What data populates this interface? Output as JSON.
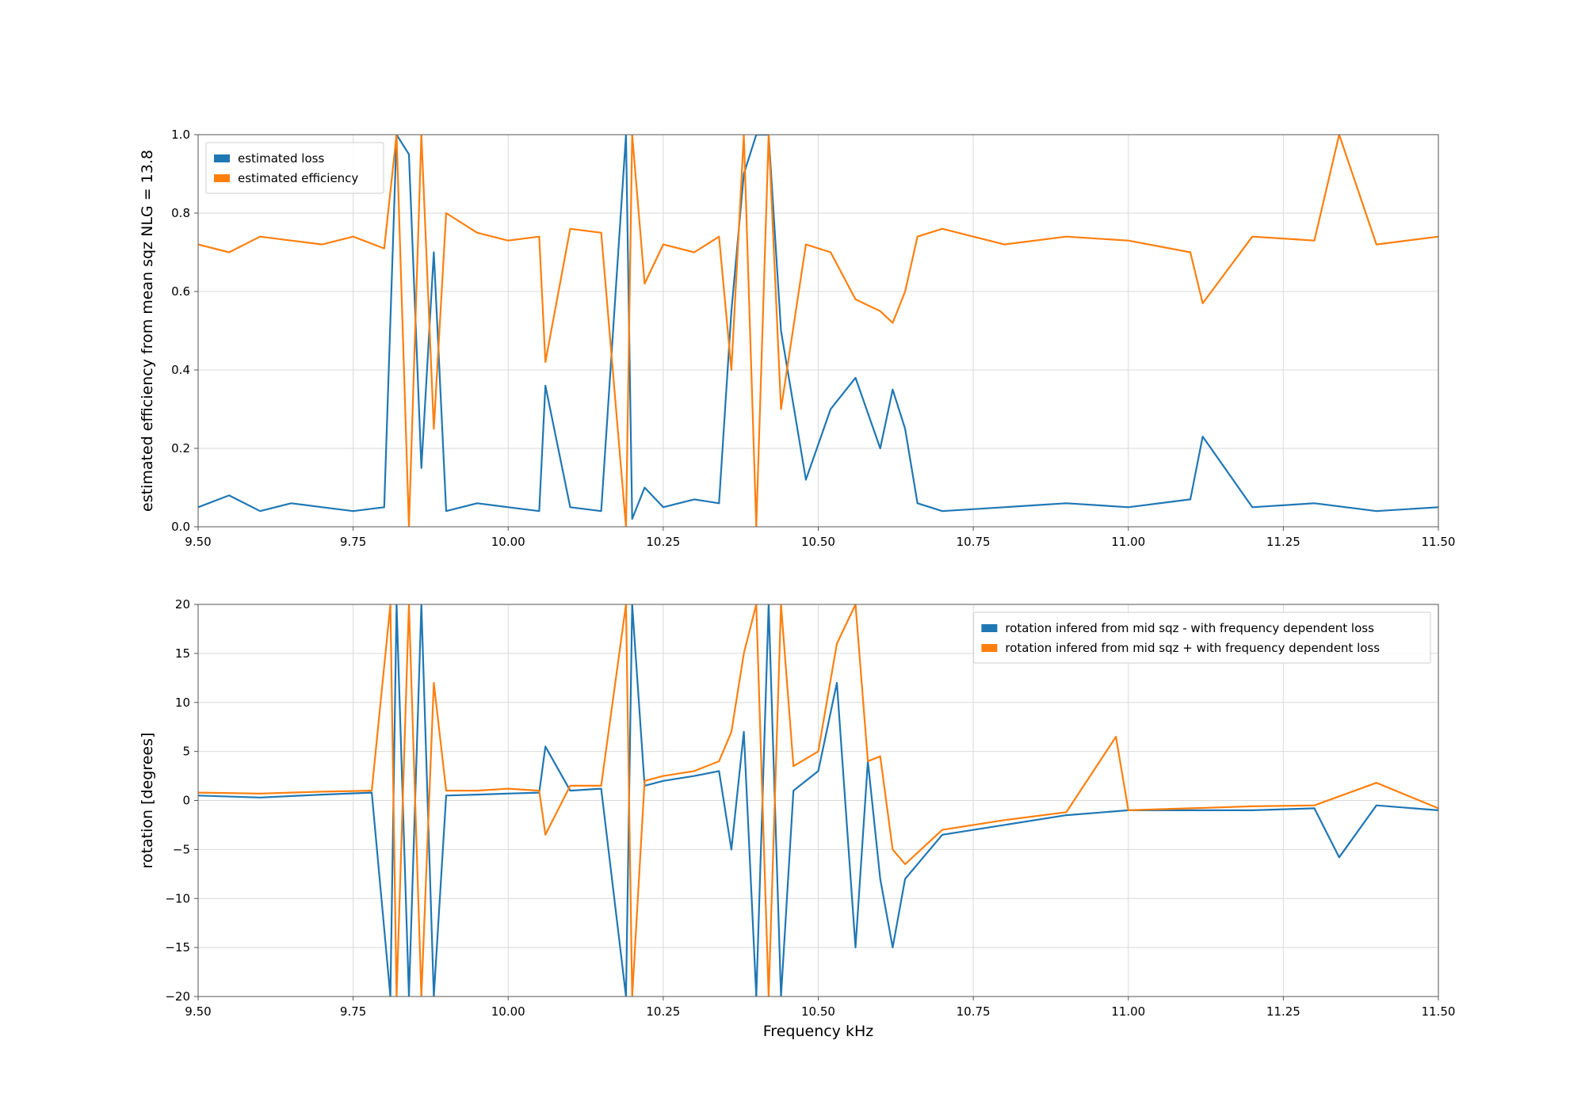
{
  "chart_data": [
    {
      "type": "line",
      "title": "",
      "xlabel": "",
      "ylabel": "estimated efficiency from mean sqz NLG = 13.8",
      "xlim": [
        9.5,
        11.5
      ],
      "ylim": [
        0.0,
        1.0
      ],
      "grid": true,
      "legend_placement": "upper-left",
      "xtick_labels": [
        "9.50",
        "9.75",
        "10.00",
        "10.25",
        "10.50",
        "10.75",
        "11.00",
        "11.25",
        "11.50"
      ],
      "ytick_labels": [
        "0.0",
        "0.2",
        "0.4",
        "0.6",
        "0.8",
        "1.0"
      ],
      "series": [
        {
          "name": "estimated loss",
          "color": "#1f77b4",
          "x": [
            9.5,
            9.55,
            9.6,
            9.65,
            9.7,
            9.75,
            9.8,
            9.82,
            9.84,
            9.86,
            9.88,
            9.9,
            9.95,
            10.0,
            10.05,
            10.06,
            10.1,
            10.15,
            10.19,
            10.2,
            10.22,
            10.25,
            10.3,
            10.34,
            10.36,
            10.38,
            10.4,
            10.42,
            10.44,
            10.48,
            10.52,
            10.56,
            10.6,
            10.62,
            10.64,
            10.66,
            10.7,
            10.8,
            10.9,
            11.0,
            11.1,
            11.12,
            11.2,
            11.3,
            11.4,
            11.5
          ],
          "y": [
            0.05,
            0.08,
            0.04,
            0.06,
            0.05,
            0.04,
            0.05,
            1.0,
            0.95,
            0.15,
            0.7,
            0.04,
            0.06,
            0.05,
            0.04,
            0.36,
            0.05,
            0.04,
            1.0,
            0.02,
            0.1,
            0.05,
            0.07,
            0.06,
            0.55,
            0.9,
            1.0,
            1.0,
            0.5,
            0.12,
            0.3,
            0.38,
            0.2,
            0.35,
            0.25,
            0.06,
            0.04,
            0.05,
            0.06,
            0.05,
            0.07,
            0.23,
            0.05,
            0.06,
            0.04,
            0.05
          ]
        },
        {
          "name": "estimated efficiency",
          "color": "#ff7f0e",
          "x": [
            9.5,
            9.55,
            9.6,
            9.65,
            9.7,
            9.75,
            9.8,
            9.82,
            9.84,
            9.86,
            9.88,
            9.9,
            9.95,
            10.0,
            10.05,
            10.06,
            10.1,
            10.15,
            10.19,
            10.2,
            10.22,
            10.25,
            10.3,
            10.34,
            10.36,
            10.38,
            10.4,
            10.42,
            10.44,
            10.48,
            10.52,
            10.56,
            10.6,
            10.62,
            10.64,
            10.66,
            10.7,
            10.8,
            10.9,
            11.0,
            11.1,
            11.12,
            11.2,
            11.3,
            11.34,
            11.4,
            11.5
          ],
          "y": [
            0.72,
            0.7,
            0.74,
            0.73,
            0.72,
            0.74,
            0.71,
            1.0,
            0.0,
            1.0,
            0.25,
            0.8,
            0.75,
            0.73,
            0.74,
            0.42,
            0.76,
            0.75,
            0.0,
            1.0,
            0.62,
            0.72,
            0.7,
            0.74,
            0.4,
            1.0,
            0.0,
            1.0,
            0.3,
            0.72,
            0.7,
            0.58,
            0.55,
            0.52,
            0.6,
            0.74,
            0.76,
            0.72,
            0.74,
            0.73,
            0.7,
            0.57,
            0.74,
            0.73,
            1.0,
            0.72,
            0.74
          ]
        }
      ]
    },
    {
      "type": "line",
      "title": "",
      "xlabel": "Frequency kHz",
      "ylabel": "rotation [degrees]",
      "xlim": [
        9.5,
        11.5
      ],
      "ylim": [
        -20,
        20
      ],
      "grid": true,
      "legend_placement": "upper-right",
      "xtick_labels": [
        "9.50",
        "9.75",
        "10.00",
        "10.25",
        "10.50",
        "10.75",
        "11.00",
        "11.25",
        "11.50"
      ],
      "ytick_labels": [
        "−20",
        "−15",
        "−10",
        "−5",
        "0",
        "5",
        "10",
        "15",
        "20"
      ],
      "series": [
        {
          "name": "rotation infered from mid sqz - with frequency dependent loss",
          "color": "#1f77b4",
          "x": [
            9.5,
            9.6,
            9.7,
            9.78,
            9.81,
            9.82,
            9.84,
            9.86,
            9.88,
            9.9,
            9.95,
            10.0,
            10.05,
            10.06,
            10.1,
            10.15,
            10.19,
            10.2,
            10.22,
            10.25,
            10.3,
            10.34,
            10.36,
            10.38,
            10.4,
            10.42,
            10.44,
            10.46,
            10.5,
            10.53,
            10.56,
            10.58,
            10.6,
            10.62,
            10.64,
            10.7,
            10.8,
            10.9,
            11.0,
            11.1,
            11.2,
            11.3,
            11.34,
            11.4,
            11.5
          ],
          "y": [
            0.5,
            0.3,
            0.6,
            0.8,
            -20,
            20,
            -20,
            20,
            -20,
            0.5,
            0.6,
            0.7,
            0.8,
            5.5,
            1.0,
            1.2,
            -20,
            20,
            1.5,
            2.0,
            2.5,
            3.0,
            -5,
            7,
            -20,
            20,
            -20,
            1.0,
            3.0,
            12,
            -15,
            4,
            -8,
            -15,
            -8,
            -3.5,
            -2.5,
            -1.5,
            -1.0,
            -1.0,
            -1.0,
            -0.8,
            -5.8,
            -0.5,
            -1.0
          ]
        },
        {
          "name": "rotation infered from mid sqz + with frequency dependent loss",
          "color": "#ff7f0e",
          "x": [
            9.5,
            9.6,
            9.7,
            9.78,
            9.81,
            9.82,
            9.84,
            9.86,
            9.88,
            9.9,
            9.95,
            10.0,
            10.05,
            10.06,
            10.1,
            10.15,
            10.19,
            10.2,
            10.22,
            10.25,
            10.3,
            10.34,
            10.36,
            10.38,
            10.4,
            10.42,
            10.44,
            10.46,
            10.5,
            10.53,
            10.56,
            10.58,
            10.6,
            10.62,
            10.64,
            10.7,
            10.8,
            10.9,
            10.98,
            11.0,
            11.1,
            11.2,
            11.3,
            11.4,
            11.5
          ],
          "y": [
            0.8,
            0.7,
            0.9,
            1.0,
            20,
            -20,
            20,
            -20,
            12,
            1.0,
            1.0,
            1.2,
            1.0,
            -3.5,
            1.5,
            1.5,
            20,
            -20,
            2.0,
            2.5,
            3.0,
            4.0,
            7,
            15,
            20,
            -20,
            20,
            3.5,
            5.0,
            16,
            20,
            4,
            4.5,
            -5,
            -6.5,
            -3,
            -2,
            -1.2,
            6.5,
            -1.0,
            -0.8,
            -0.6,
            -0.5,
            1.8,
            -0.8
          ]
        }
      ]
    }
  ]
}
